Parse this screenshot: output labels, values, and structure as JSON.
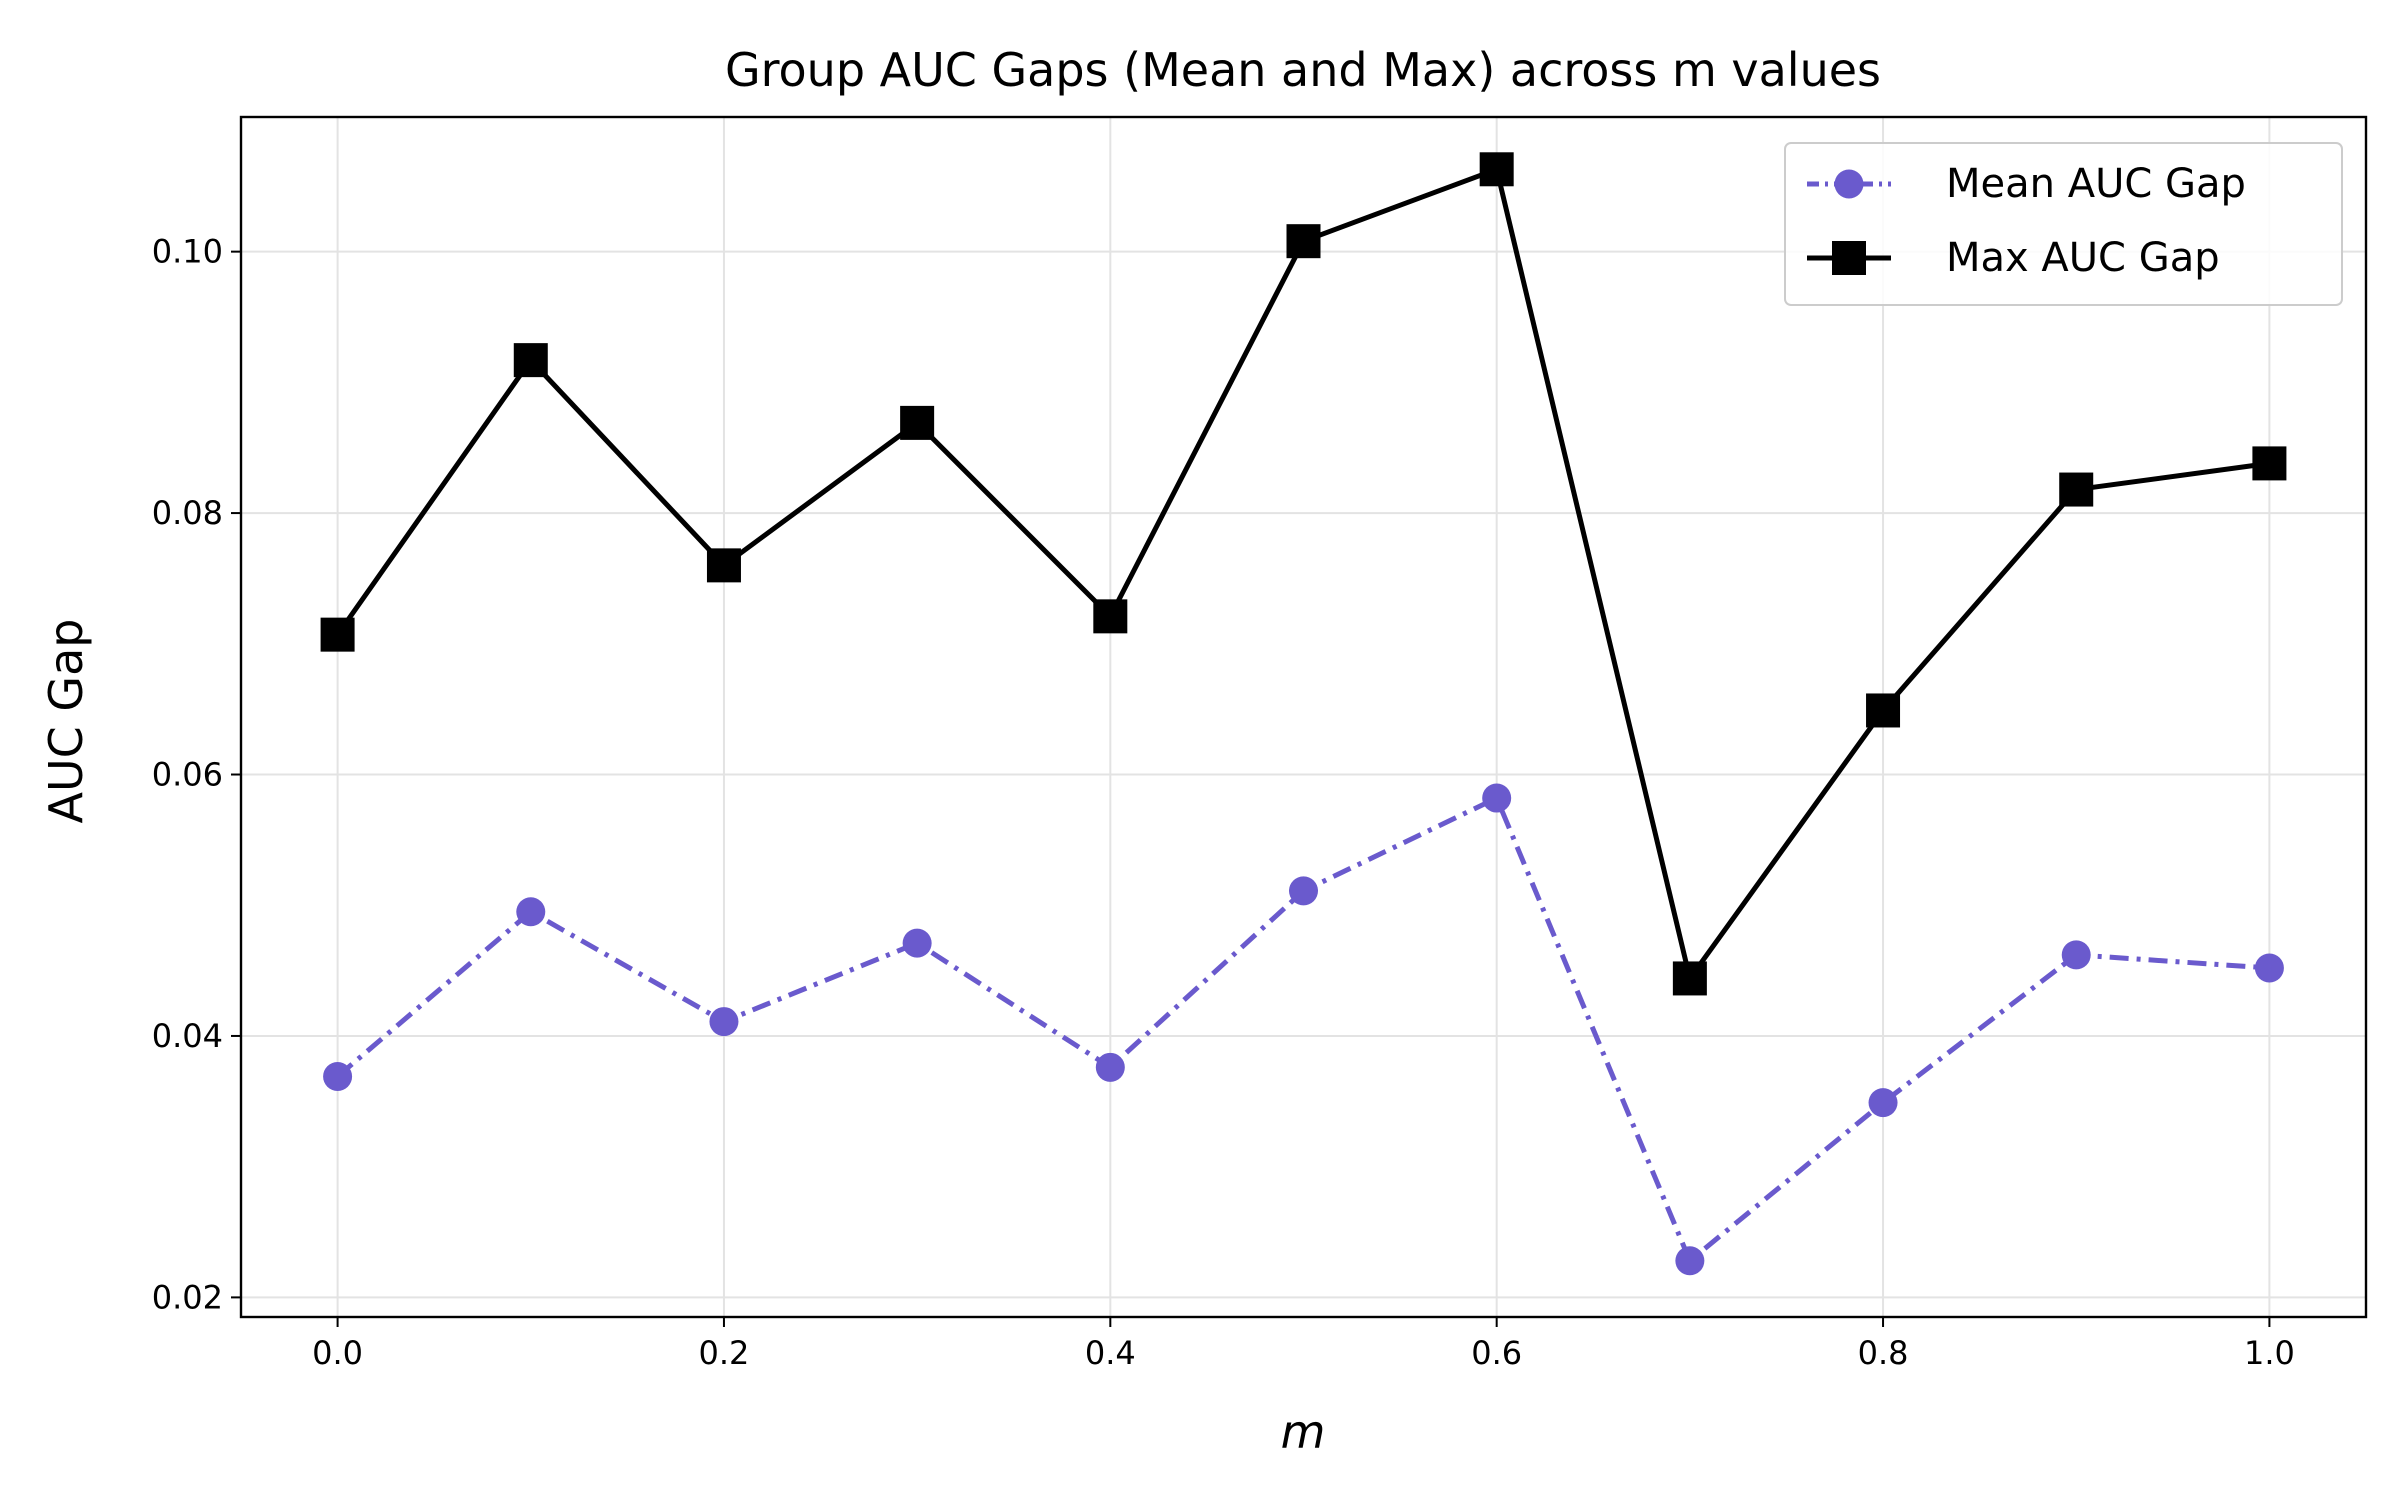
{
  "chart_data": {
    "type": "line",
    "title": "Group AUC Gaps (Mean and Max) across m values",
    "xlabel": "m",
    "ylabel": "AUC Gap",
    "xlim": [
      -0.05,
      1.05
    ],
    "ylim": [
      0.0185,
      0.1103
    ],
    "x_ticks": [
      0.0,
      0.2,
      0.4,
      0.6,
      0.8,
      1.0
    ],
    "x_tick_labels": [
      "0.0",
      "0.2",
      "0.4",
      "0.6",
      "0.8",
      "1.0"
    ],
    "y_ticks": [
      0.02,
      0.04,
      0.06,
      0.08,
      0.1
    ],
    "y_tick_labels": [
      "0.02",
      "0.04",
      "0.06",
      "0.08",
      "0.10"
    ],
    "grid": true,
    "legend_position": "top-right",
    "x": [
      0.0,
      0.1,
      0.2,
      0.3,
      0.4,
      0.5,
      0.6,
      0.7,
      0.8,
      0.9,
      1.0
    ],
    "series": [
      {
        "name": "Mean AUC Gap",
        "values": [
          0.0369,
          0.0495,
          0.0411,
          0.0471,
          0.0376,
          0.0511,
          0.0582,
          0.0228,
          0.0349,
          0.0462,
          0.0452
        ],
        "color": "#6a5acd",
        "line_style": "dash-dot",
        "marker": "circle"
      },
      {
        "name": "Max AUC Gap",
        "values": [
          0.0707,
          0.0917,
          0.076,
          0.0869,
          0.0721,
          0.1008,
          0.1063,
          0.0444,
          0.0649,
          0.0818,
          0.0838
        ],
        "color": "#000000",
        "line_style": "solid",
        "marker": "square"
      }
    ]
  }
}
